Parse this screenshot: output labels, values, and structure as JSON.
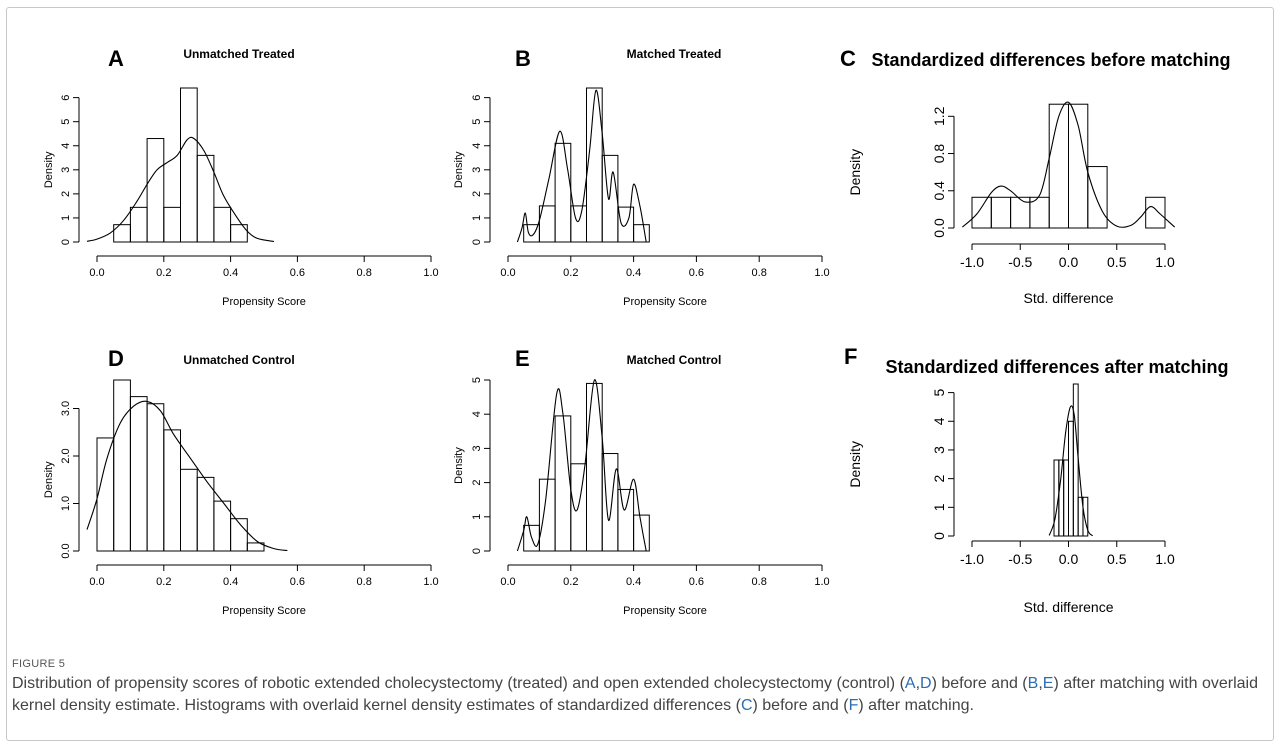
{
  "figure": {
    "label": "FIGURE 5",
    "caption": [
      {
        "t": "Distribution of propensity scores of robotic extended cholecystectomy (treated) and open extended cholecystectomy (control) ("
      },
      {
        "t": "A",
        "link": true
      },
      {
        "t": ","
      },
      {
        "t": "D",
        "link": true
      },
      {
        "t": ") before and ("
      },
      {
        "t": "B",
        "link": true
      },
      {
        "t": ","
      },
      {
        "t": "E",
        "link": true
      },
      {
        "t": ") after matching with overlaid kernel density estimate. Histograms with overlaid kernel density estimates of standardized differences ("
      },
      {
        "t": "C",
        "link": true
      },
      {
        "t": ") before and ("
      },
      {
        "t": "F",
        "link": true
      },
      {
        "t": ") after matching."
      }
    ]
  },
  "chart_data": [
    {
      "panel": "A",
      "title": "Unmatched Treated",
      "type": "bar",
      "xlabel": "Propensity Score",
      "ylabel": "Density",
      "xlim": [
        0,
        1
      ],
      "ylim": [
        0,
        6.4
      ],
      "xticks": [
        "0.0",
        "0.2",
        "0.4",
        "0.6",
        "0.8",
        "1.0"
      ],
      "yticks": [
        "0",
        "1",
        "2",
        "3",
        "4",
        "5",
        "6"
      ],
      "bins": [
        [
          0.05,
          0.1,
          0.72
        ],
        [
          0.1,
          0.15,
          1.44
        ],
        [
          0.15,
          0.2,
          4.3
        ],
        [
          0.2,
          0.25,
          1.44
        ],
        [
          0.25,
          0.3,
          6.4
        ],
        [
          0.3,
          0.35,
          3.6
        ],
        [
          0.35,
          0.4,
          1.44
        ],
        [
          0.4,
          0.45,
          0.72
        ]
      ],
      "density": [
        [
          -0.03,
          0.03
        ],
        [
          0.0,
          0.12
        ],
        [
          0.04,
          0.38
        ],
        [
          0.08,
          0.9
        ],
        [
          0.12,
          1.7
        ],
        [
          0.15,
          2.4
        ],
        [
          0.18,
          3.0
        ],
        [
          0.21,
          3.3
        ],
        [
          0.24,
          3.6
        ],
        [
          0.27,
          4.25
        ],
        [
          0.29,
          4.3
        ],
        [
          0.32,
          3.8
        ],
        [
          0.35,
          2.9
        ],
        [
          0.38,
          1.9
        ],
        [
          0.42,
          1.0
        ],
        [
          0.45,
          0.45
        ],
        [
          0.48,
          0.15
        ],
        [
          0.53,
          0.02
        ]
      ]
    },
    {
      "panel": "B",
      "title": "Matched Treated",
      "type": "bar",
      "xlabel": "Propensity Score",
      "ylabel": "Density",
      "xlim": [
        0,
        1
      ],
      "ylim": [
        0,
        6.4
      ],
      "xticks": [
        "0.0",
        "0.2",
        "0.4",
        "0.6",
        "0.8",
        "1.0"
      ],
      "yticks": [
        "0",
        "1",
        "2",
        "3",
        "4",
        "5",
        "6"
      ],
      "bins": [
        [
          0.05,
          0.1,
          0.72
        ],
        [
          0.1,
          0.15,
          1.5
        ],
        [
          0.15,
          0.2,
          4.1
        ],
        [
          0.2,
          0.25,
          1.5
        ],
        [
          0.25,
          0.3,
          6.4
        ],
        [
          0.3,
          0.35,
          3.6
        ],
        [
          0.35,
          0.4,
          1.45
        ],
        [
          0.4,
          0.45,
          0.72
        ]
      ],
      "density": [
        [
          0.03,
          0.0
        ],
        [
          0.045,
          0.6
        ],
        [
          0.055,
          1.2
        ],
        [
          0.065,
          0.4
        ],
        [
          0.08,
          0.3
        ],
        [
          0.1,
          0.9
        ],
        [
          0.13,
          2.6
        ],
        [
          0.165,
          4.6
        ],
        [
          0.19,
          3.0
        ],
        [
          0.215,
          1.0
        ],
        [
          0.235,
          1.3
        ],
        [
          0.26,
          3.8
        ],
        [
          0.28,
          6.3
        ],
        [
          0.3,
          4.5
        ],
        [
          0.32,
          1.8
        ],
        [
          0.335,
          2.9
        ],
        [
          0.36,
          0.8
        ],
        [
          0.385,
          1.0
        ],
        [
          0.4,
          2.4
        ],
        [
          0.42,
          1.5
        ],
        [
          0.44,
          0.0
        ]
      ]
    },
    {
      "panel": "C",
      "title": "Standardized differences before matching",
      "type": "bar",
      "xlabel": "Std. difference",
      "ylabel": "Density",
      "xlim": [
        -1.0,
        1.0
      ],
      "ylim": [
        0,
        1.3
      ],
      "xticks": [
        "-1.0",
        "-0.5",
        "0.0",
        "0.5",
        "1.0"
      ],
      "yticks": [
        "0.0",
        "0.4",
        "0.8",
        "1.2"
      ],
      "bins": [
        [
          -1.0,
          -0.8,
          0.33
        ],
        [
          -0.8,
          -0.6,
          0.33
        ],
        [
          -0.6,
          -0.4,
          0.33
        ],
        [
          -0.4,
          -0.2,
          0.33
        ],
        [
          -0.2,
          0.0,
          1.33
        ],
        [
          0.0,
          0.2,
          1.33
        ],
        [
          0.2,
          0.4,
          0.66
        ],
        [
          0.8,
          1.0,
          0.33
        ]
      ],
      "density": [
        [
          -1.1,
          0.01
        ],
        [
          -0.95,
          0.15
        ],
        [
          -0.8,
          0.38
        ],
        [
          -0.7,
          0.45
        ],
        [
          -0.6,
          0.4
        ],
        [
          -0.45,
          0.28
        ],
        [
          -0.3,
          0.35
        ],
        [
          -0.2,
          0.75
        ],
        [
          -0.1,
          1.2
        ],
        [
          0.0,
          1.35
        ],
        [
          0.1,
          1.1
        ],
        [
          0.2,
          0.6
        ],
        [
          0.35,
          0.18
        ],
        [
          0.5,
          0.02
        ],
        [
          0.65,
          0.03
        ],
        [
          0.75,
          0.12
        ],
        [
          0.85,
          0.23
        ],
        [
          0.95,
          0.15
        ],
        [
          1.1,
          0.01
        ]
      ]
    },
    {
      "panel": "D",
      "title": "Unmatched Control",
      "type": "bar",
      "xlabel": "Propensity Score",
      "ylabel": "Density",
      "xlim": [
        0,
        1
      ],
      "ylim": [
        0,
        3.6
      ],
      "xticks": [
        "0.0",
        "0.2",
        "0.4",
        "0.6",
        "0.8",
        "1.0"
      ],
      "yticks": [
        "0.0",
        "1.0",
        "2.0",
        "3.0"
      ],
      "bins": [
        [
          0.0,
          0.05,
          2.38
        ],
        [
          0.05,
          0.1,
          3.6
        ],
        [
          0.1,
          0.15,
          3.25
        ],
        [
          0.15,
          0.2,
          3.1
        ],
        [
          0.2,
          0.25,
          2.55
        ],
        [
          0.25,
          0.3,
          1.72
        ],
        [
          0.3,
          0.35,
          1.55
        ],
        [
          0.35,
          0.4,
          1.05
        ],
        [
          0.4,
          0.45,
          0.68
        ],
        [
          0.45,
          0.5,
          0.17
        ]
      ],
      "density": [
        [
          -0.03,
          0.45
        ],
        [
          0.0,
          1.1
        ],
        [
          0.03,
          1.95
        ],
        [
          0.07,
          2.7
        ],
        [
          0.11,
          3.05
        ],
        [
          0.15,
          3.15
        ],
        [
          0.19,
          2.95
        ],
        [
          0.23,
          2.45
        ],
        [
          0.28,
          1.95
        ],
        [
          0.33,
          1.45
        ],
        [
          0.38,
          1.0
        ],
        [
          0.43,
          0.55
        ],
        [
          0.48,
          0.2
        ],
        [
          0.53,
          0.05
        ],
        [
          0.57,
          0.01
        ]
      ]
    },
    {
      "panel": "E",
      "title": "Matched Control",
      "type": "bar",
      "xlabel": "Propensity Score",
      "ylabel": "Density",
      "xlim": [
        0,
        1
      ],
      "ylim": [
        0,
        5
      ],
      "xticks": [
        "0.0",
        "0.2",
        "0.4",
        "0.6",
        "0.8",
        "1.0"
      ],
      "yticks": [
        "0",
        "1",
        "2",
        "3",
        "4",
        "5"
      ],
      "bins": [
        [
          0.05,
          0.1,
          0.75
        ],
        [
          0.1,
          0.15,
          2.1
        ],
        [
          0.15,
          0.2,
          3.95
        ],
        [
          0.2,
          0.25,
          2.55
        ],
        [
          0.25,
          0.3,
          4.9
        ],
        [
          0.3,
          0.35,
          2.85
        ],
        [
          0.35,
          0.4,
          1.8
        ],
        [
          0.4,
          0.45,
          1.05
        ]
      ],
      "density": [
        [
          0.03,
          0.0
        ],
        [
          0.05,
          0.6
        ],
        [
          0.06,
          1.0
        ],
        [
          0.075,
          0.4
        ],
        [
          0.095,
          0.2
        ],
        [
          0.12,
          1.5
        ],
        [
          0.155,
          4.6
        ],
        [
          0.175,
          4.0
        ],
        [
          0.2,
          1.8
        ],
        [
          0.22,
          1.2
        ],
        [
          0.245,
          2.5
        ],
        [
          0.275,
          5.0
        ],
        [
          0.3,
          3.3
        ],
        [
          0.32,
          0.9
        ],
        [
          0.345,
          2.4
        ],
        [
          0.37,
          1.2
        ],
        [
          0.4,
          2.1
        ],
        [
          0.42,
          1.0
        ],
        [
          0.44,
          0.0
        ]
      ]
    },
    {
      "panel": "F",
      "title": "Standardized differences after matching",
      "type": "bar",
      "xlabel": "Std. difference",
      "ylabel": "Density",
      "xlim": [
        -1.0,
        1.0
      ],
      "ylim": [
        0,
        5.3
      ],
      "xticks": [
        "-1.0",
        "-0.5",
        "0.0",
        "0.5",
        "1.0"
      ],
      "yticks": [
        "0",
        "1",
        "2",
        "3",
        "4",
        "5"
      ],
      "bins": [
        [
          -0.15,
          -0.1,
          2.65
        ],
        [
          -0.1,
          -0.05,
          2.65
        ],
        [
          -0.05,
          0.0,
          2.65
        ],
        [
          0.0,
          0.05,
          4.0
        ],
        [
          0.05,
          0.1,
          5.3
        ],
        [
          0.1,
          0.15,
          1.35
        ],
        [
          0.15,
          0.2,
          1.35
        ]
      ],
      "density": [
        [
          -0.2,
          0.02
        ],
        [
          -0.14,
          0.6
        ],
        [
          -0.08,
          2.0
        ],
        [
          -0.03,
          3.6
        ],
        [
          0.02,
          4.5
        ],
        [
          0.06,
          4.2
        ],
        [
          0.1,
          2.7
        ],
        [
          0.15,
          1.0
        ],
        [
          0.2,
          0.2
        ],
        [
          0.25,
          0.01
        ]
      ]
    }
  ]
}
